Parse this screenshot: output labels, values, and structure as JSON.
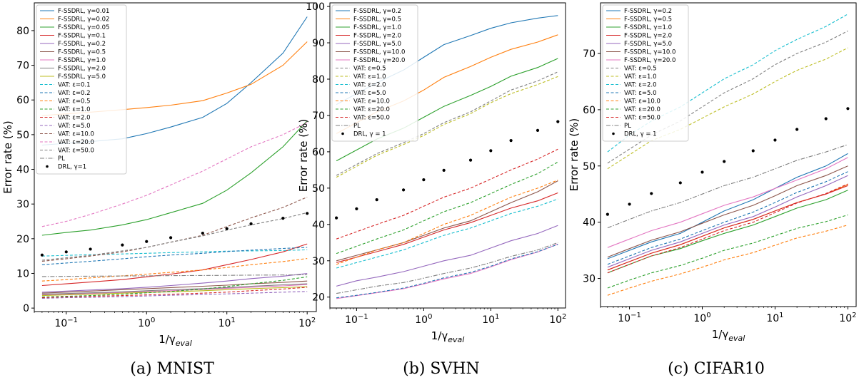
{
  "chart_data": [
    {
      "type": "line",
      "caption": "(a)   MNIST",
      "xlabel": "1/γ_eval",
      "ylabel": "Error rate (%)",
      "xscale": "log",
      "xlim": [
        0.04,
        130
      ],
      "ylim": [
        -1,
        88
      ],
      "yticks": [
        0,
        10,
        20,
        30,
        40,
        50,
        60,
        70,
        80
      ],
      "x": [
        0.05,
        0.1,
        0.2,
        0.5,
        1,
        2,
        5,
        10,
        20,
        50,
        100
      ],
      "legend_position": "upper-left",
      "series": [
        {
          "name": "F-SSDRL, γ=0.01",
          "color": "#1f77b4",
          "style": "solid",
          "values": [
            47.0,
            47.5,
            48.0,
            48.8,
            50.3,
            52.2,
            55.0,
            59.0,
            65.0,
            73.5,
            84.0
          ]
        },
        {
          "name": "F-SSDRL, γ=0.02",
          "color": "#ff7f0e",
          "style": "solid",
          "values": [
            55.5,
            56.0,
            56.5,
            57.2,
            57.8,
            58.5,
            59.8,
            62.0,
            64.5,
            70.0,
            76.8
          ]
        },
        {
          "name": "F-SSDRL, γ=0.05",
          "color": "#2ca02c",
          "style": "solid",
          "values": [
            21.0,
            21.8,
            22.5,
            24.0,
            25.5,
            27.5,
            30.2,
            34.0,
            39.0,
            46.5,
            54.0
          ]
        },
        {
          "name": "F-SSDRL, γ=0.1",
          "color": "#d62728",
          "style": "solid",
          "values": [
            6.5,
            7.0,
            7.5,
            8.2,
            9.0,
            9.8,
            11.0,
            12.5,
            14.0,
            16.2,
            18.5
          ]
        },
        {
          "name": "F-SSDRL, γ=0.2",
          "color": "#9467bd",
          "style": "solid",
          "values": [
            4.6,
            4.9,
            5.2,
            5.6,
            6.0,
            6.5,
            7.2,
            7.8,
            8.5,
            9.2,
            10.0
          ]
        },
        {
          "name": "F-SSDRL, γ=0.5",
          "color": "#8c564b",
          "style": "solid",
          "values": [
            4.3,
            4.6,
            4.9,
            5.3,
            5.6,
            5.9,
            6.3,
            6.6,
            7.0,
            7.4,
            7.8
          ]
        },
        {
          "name": "F-SSDRL, γ=1.0",
          "color": "#e377c2",
          "style": "solid",
          "values": [
            3.8,
            4.0,
            4.2,
            4.5,
            4.8,
            5.0,
            5.4,
            5.7,
            6.0,
            6.4,
            6.8
          ]
        },
        {
          "name": "F-SSDRL, γ=2.0",
          "color": "#7f7f7f",
          "style": "solid",
          "values": [
            4.0,
            4.2,
            4.4,
            4.7,
            5.0,
            5.3,
            5.6,
            5.9,
            6.3,
            6.7,
            7.0
          ]
        },
        {
          "name": "F-SSDRL, γ=5.0",
          "color": "#bcbd22",
          "style": "solid",
          "values": [
            3.6,
            3.8,
            4.0,
            4.3,
            4.5,
            4.7,
            5.0,
            5.3,
            5.6,
            5.9,
            6.2
          ]
        },
        {
          "name": "VAT: ε=0.1",
          "color": "#17becf",
          "style": "dashed",
          "values": [
            15.0,
            15.2,
            15.4,
            15.6,
            15.8,
            16.0,
            16.2,
            16.4,
            16.5,
            16.6,
            16.8
          ]
        },
        {
          "name": "VAT: ε=0.2",
          "color": "#1f77b4",
          "style": "dashed",
          "values": [
            12.5,
            13.0,
            13.5,
            14.2,
            14.8,
            15.3,
            15.8,
            16.3,
            16.7,
            17.2,
            17.5
          ]
        },
        {
          "name": "VAT: ε=0.5",
          "color": "#ff7f0e",
          "style": "dashed",
          "values": [
            7.8,
            8.2,
            8.7,
            9.3,
            9.8,
            10.3,
            11.0,
            11.7,
            12.5,
            13.4,
            14.3
          ]
        },
        {
          "name": "VAT: ε=1.0",
          "color": "#2ca02c",
          "style": "dashed",
          "values": [
            3.2,
            3.4,
            3.6,
            4.0,
            4.4,
            4.8,
            5.5,
            6.2,
            7.0,
            8.0,
            9.0
          ]
        },
        {
          "name": "VAT: ε=2.0",
          "color": "#d62728",
          "style": "dashed",
          "values": [
            3.0,
            3.2,
            3.4,
            3.6,
            3.8,
            4.0,
            4.3,
            4.6,
            5.0,
            5.5,
            6.0
          ]
        },
        {
          "name": "VAT: ε=5.0",
          "color": "#9467bd",
          "style": "dashed",
          "values": [
            2.8,
            3.0,
            3.1,
            3.3,
            3.5,
            3.7,
            3.9,
            4.1,
            4.3,
            4.6,
            4.8
          ]
        },
        {
          "name": "VAT: ε=10.0",
          "color": "#8c564b",
          "style": "dashed",
          "values": [
            13.5,
            14.2,
            15.0,
            16.2,
            17.5,
            19.0,
            21.0,
            23.5,
            26.0,
            29.0,
            32.0
          ]
        },
        {
          "name": "VAT: ε=20.0",
          "color": "#e377c2",
          "style": "dashed",
          "values": [
            23.5,
            25.0,
            27.0,
            30.0,
            32.5,
            35.5,
            39.5,
            43.0,
            46.5,
            50.0,
            53.5
          ]
        },
        {
          "name": "VAT: ε=50.0",
          "color": "#7f7f7f",
          "style": "dashed",
          "values": [
            13.8,
            14.5,
            15.2,
            16.5,
            17.5,
            19.0,
            20.8,
            22.5,
            24.0,
            25.8,
            27.5
          ]
        },
        {
          "name": "PL",
          "color": "#7f7f7f",
          "style": "dashdot",
          "values": [
            9.1,
            9.15,
            9.2,
            9.25,
            9.3,
            9.35,
            9.4,
            9.45,
            9.5,
            9.55,
            9.6
          ]
        },
        {
          "name": "DRL, γ=1",
          "color": "#000000",
          "style": "dots",
          "values": [
            15.3,
            16.2,
            17.0,
            18.2,
            19.2,
            20.3,
            21.6,
            22.9,
            24.3,
            25.9,
            27.3
          ]
        }
      ]
    },
    {
      "type": "line",
      "caption": "(b)   SVHN",
      "xlabel": "1/γ_eval",
      "ylabel": "Error rate (%)",
      "xscale": "log",
      "xlim": [
        0.04,
        130
      ],
      "ylim": [
        17,
        101
      ],
      "yticks": [
        20,
        30,
        40,
        50,
        60,
        70,
        80,
        90,
        100
      ],
      "x": [
        0.05,
        0.1,
        0.2,
        0.5,
        1,
        2,
        5,
        10,
        20,
        50,
        100
      ],
      "legend_position": "upper-left",
      "series": [
        {
          "name": "F-SSDRL, γ=0.2",
          "color": "#1f77b4",
          "style": "solid",
          "values": [
            73.0,
            76.0,
            79.0,
            82.5,
            86.0,
            89.5,
            92.0,
            94.0,
            95.5,
            96.8,
            97.5
          ]
        },
        {
          "name": "F-SSDRL, γ=0.5",
          "color": "#ff7f0e",
          "style": "solid",
          "values": [
            65.0,
            68.0,
            71.0,
            74.0,
            77.0,
            80.5,
            83.5,
            86.0,
            88.2,
            90.2,
            92.2
          ]
        },
        {
          "name": "F-SSDRL, γ=1.0",
          "color": "#2ca02c",
          "style": "solid",
          "values": [
            57.5,
            60.5,
            63.5,
            66.5,
            69.5,
            72.5,
            75.5,
            78.0,
            80.8,
            83.2,
            85.7
          ]
        },
        {
          "name": "F-SSDRL, γ=2.0",
          "color": "#d62728",
          "style": "solid",
          "values": [
            29.5,
            31.0,
            32.5,
            34.5,
            36.5,
            38.5,
            40.5,
            42.5,
            44.5,
            46.5,
            48.7
          ]
        },
        {
          "name": "F-SSDRL, γ=5.0",
          "color": "#9467bd",
          "style": "solid",
          "values": [
            23.0,
            24.5,
            25.5,
            27.0,
            28.5,
            30.0,
            31.5,
            33.5,
            35.5,
            37.5,
            39.7
          ]
        },
        {
          "name": "F-SSDRL, γ=10.0",
          "color": "#8c564b",
          "style": "solid",
          "values": [
            30.0,
            31.5,
            33.0,
            35.0,
            37.0,
            39.0,
            41.0,
            43.5,
            46.0,
            49.0,
            52.0
          ]
        },
        {
          "name": "F-SSDRL, γ=20.0",
          "color": "#e377c2",
          "style": "solid",
          "values": [
            19.6,
            20.4,
            21.2,
            22.3,
            23.6,
            25.0,
            26.5,
            28.3,
            30.3,
            32.4,
            34.6
          ]
        },
        {
          "name": "VAT: ε=0.5",
          "color": "#7f7f7f",
          "style": "dashed",
          "values": [
            53.5,
            56.5,
            59.5,
            62.5,
            65.0,
            68.0,
            71.0,
            74.0,
            77.0,
            79.5,
            82.0
          ]
        },
        {
          "name": "VAT: ε=1.0",
          "color": "#bcbd22",
          "style": "dashed",
          "values": [
            53.0,
            56.0,
            59.0,
            62.0,
            64.5,
            67.5,
            70.5,
            73.5,
            76.0,
            78.5,
            80.7
          ]
        },
        {
          "name": "VAT: ε=2.0",
          "color": "#17becf",
          "style": "dashed",
          "values": [
            28.0,
            29.5,
            31.0,
            33.0,
            35.0,
            37.0,
            39.0,
            41.0,
            43.0,
            45.0,
            47.0
          ]
        },
        {
          "name": "VAT: ε=5.0",
          "color": "#1f77b4",
          "style": "dashed",
          "values": [
            19.8,
            20.5,
            21.3,
            22.5,
            23.8,
            25.3,
            26.8,
            28.5,
            30.5,
            32.5,
            34.5
          ]
        },
        {
          "name": "VAT: ε=10.0",
          "color": "#ff7f0e",
          "style": "dashed",
          "values": [
            29.0,
            31.0,
            33.0,
            35.0,
            37.5,
            40.0,
            42.5,
            45.0,
            47.5,
            50.0,
            52.2
          ]
        },
        {
          "name": "VAT: ε=20.0",
          "color": "#2ca02c",
          "style": "dashed",
          "values": [
            32.0,
            34.0,
            36.0,
            38.5,
            41.0,
            43.5,
            46.0,
            48.5,
            51.0,
            54.0,
            57.2
          ]
        },
        {
          "name": "VAT: ε=50.0",
          "color": "#d62728",
          "style": "dashed",
          "values": [
            36.0,
            38.0,
            40.0,
            42.5,
            45.0,
            47.5,
            50.0,
            52.5,
            55.0,
            58.0,
            60.7
          ]
        },
        {
          "name": "PL",
          "color": "#7f7f7f",
          "style": "dashdot",
          "values": [
            21.0,
            22.0,
            23.0,
            24.0,
            25.2,
            26.5,
            28.0,
            29.5,
            31.2,
            33.0,
            35.0
          ]
        },
        {
          "name": "DRL, γ = 1",
          "color": "#000000",
          "style": "dots",
          "values": [
            41.8,
            44.3,
            46.8,
            49.5,
            52.3,
            54.9,
            57.7,
            60.3,
            63.1,
            65.9,
            68.3
          ]
        }
      ]
    },
    {
      "type": "line",
      "caption": "(c)   CIFAR10",
      "xlabel": "1/γ_eval",
      "ylabel": "Error rate (%)",
      "xscale": "log",
      "xlim": [
        0.04,
        130
      ],
      "ylim": [
        25,
        79
      ],
      "yticks": [
        30,
        40,
        50,
        60,
        70
      ],
      "x": [
        0.05,
        0.1,
        0.2,
        0.5,
        1,
        2,
        5,
        10,
        20,
        50,
        100
      ],
      "legend_position": "upper-left",
      "series": [
        {
          "name": "F-SSDRL, γ=0.2",
          "color": "#1f77b4",
          "style": "solid",
          "values": [
            33.5,
            35.0,
            36.5,
            38.0,
            40.0,
            42.0,
            44.0,
            46.0,
            48.0,
            50.0,
            52.2
          ]
        },
        {
          "name": "F-SSDRL, γ=0.5",
          "color": "#ff7f0e",
          "style": "solid",
          "values": [
            31.5,
            33.0,
            34.5,
            36.0,
            37.5,
            39.0,
            40.5,
            42.0,
            43.5,
            45.0,
            46.7
          ]
        },
        {
          "name": "F-SSDRL, γ=1.0",
          "color": "#2ca02c",
          "style": "solid",
          "values": [
            31.0,
            32.5,
            34.0,
            35.3,
            36.7,
            38.0,
            39.5,
            41.0,
            42.5,
            44.0,
            45.7
          ]
        },
        {
          "name": "F-SSDRL, γ=2.0",
          "color": "#d62728",
          "style": "solid",
          "values": [
            31.5,
            33.0,
            34.5,
            36.0,
            37.5,
            39.0,
            40.5,
            42.0,
            43.5,
            45.0,
            46.5
          ]
        },
        {
          "name": "F-SSDRL, γ=5.0",
          "color": "#9467bd",
          "style": "solid",
          "values": [
            32.0,
            33.5,
            35.0,
            36.5,
            38.0,
            39.5,
            41.0,
            42.7,
            44.5,
            46.5,
            48.3
          ]
        },
        {
          "name": "F-SSDRL, γ=10.0",
          "color": "#8c564b",
          "style": "solid",
          "values": [
            33.8,
            35.3,
            36.8,
            38.3,
            39.8,
            41.3,
            43.0,
            44.7,
            46.5,
            48.3,
            50.0
          ]
        },
        {
          "name": "F-SSDRL, γ=20.0",
          "color": "#e377c2",
          "style": "solid",
          "values": [
            35.5,
            37.0,
            38.5,
            40.0,
            41.5,
            43.0,
            44.5,
            46.0,
            47.5,
            49.5,
            51.5
          ]
        },
        {
          "name": "VAT: ε=0.5",
          "color": "#7f7f7f",
          "style": "dashed",
          "values": [
            50.5,
            53.0,
            55.5,
            58.0,
            60.5,
            63.0,
            65.5,
            68.0,
            70.0,
            72.0,
            74.0
          ]
        },
        {
          "name": "VAT: ε=1.0",
          "color": "#bcbd22",
          "style": "dashed",
          "values": [
            49.5,
            52.0,
            54.5,
            56.5,
            58.5,
            60.5,
            62.8,
            65.0,
            67.0,
            69.0,
            71.0
          ]
        },
        {
          "name": "VAT: ε=2.0",
          "color": "#17becf",
          "style": "dashed",
          "values": [
            52.5,
            55.5,
            58.0,
            60.5,
            63.0,
            65.5,
            68.0,
            70.5,
            72.5,
            74.8,
            77.0
          ]
        },
        {
          "name": "VAT: ε=5.0",
          "color": "#1f77b4",
          "style": "dashed",
          "values": [
            32.5,
            34.0,
            35.5,
            37.0,
            38.5,
            40.0,
            41.8,
            43.5,
            45.3,
            47.2,
            49.0
          ]
        },
        {
          "name": "VAT: ε=10.0",
          "color": "#ff7f0e",
          "style": "dashed",
          "values": [
            27.0,
            28.3,
            29.5,
            30.8,
            32.0,
            33.3,
            34.6,
            35.9,
            37.2,
            38.4,
            39.5
          ]
        },
        {
          "name": "VAT: ε=20.0",
          "color": "#2ca02c",
          "style": "dashed",
          "values": [
            28.3,
            29.7,
            31.0,
            32.3,
            33.6,
            35.0,
            36.3,
            37.6,
            38.9,
            40.1,
            41.3
          ]
        },
        {
          "name": "VAT: ε=50.0",
          "color": "#d62728",
          "style": "dashed",
          "values": [
            31.0,
            32.5,
            34.0,
            35.5,
            37.0,
            38.5,
            40.0,
            41.7,
            43.4,
            45.1,
            46.8
          ]
        },
        {
          "name": "PL",
          "color": "#7f7f7f",
          "style": "dashdot",
          "values": [
            39.0,
            40.5,
            42.0,
            43.5,
            45.0,
            46.5,
            48.0,
            49.5,
            51.0,
            52.5,
            53.8
          ]
        },
        {
          "name": "DRL, γ = 1",
          "color": "#000000",
          "style": "dots",
          "values": [
            41.4,
            43.2,
            45.1,
            47.0,
            48.9,
            50.8,
            52.7,
            54.6,
            56.5,
            58.4,
            60.2
          ]
        }
      ]
    }
  ]
}
